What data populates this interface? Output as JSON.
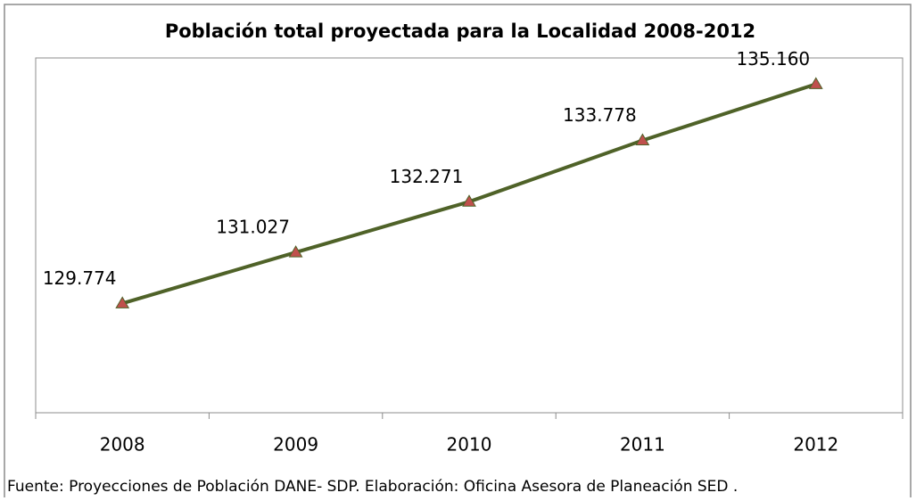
{
  "chart_data": {
    "type": "line",
    "title": "Población  total proyectada para la Localidad 2008-2012",
    "categories": [
      "2008",
      "2009",
      "2010",
      "2011",
      "2012"
    ],
    "series": [
      {
        "name": "Población",
        "color": "#4f6228",
        "marker_color": "#c0504d",
        "values": [
          129774,
          131027,
          132271,
          133778,
          135160
        ],
        "value_labels": [
          "129.774",
          "131.027",
          "132.271",
          "133.778",
          "135.160"
        ]
      }
    ],
    "ylim": [
      127000,
      136000
    ],
    "source": "Fuente: Proyecciones de Población DANE- SDP. Elaboración: Oficina Asesora de Planeación SED ."
  }
}
